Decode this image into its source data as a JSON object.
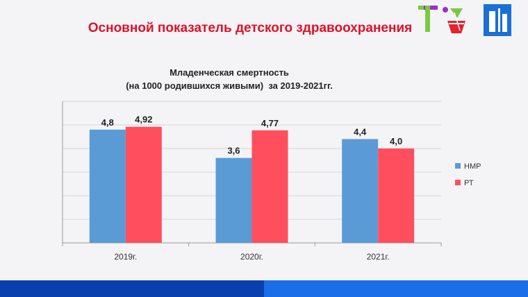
{
  "slide_title": "Основной показатель детского здравоохранения",
  "chart_data": {
    "type": "bar",
    "title_line1": "Младенческая смертность",
    "title_line2": "(на 1000 родившихся живыми)  за 2019-2021гг.",
    "categories": [
      "2019г.",
      "2020г.",
      "2021г."
    ],
    "series": [
      {
        "name": "НМР",
        "values": [
          4.8,
          3.6,
          4.4
        ],
        "labels": [
          "4,8",
          "3,6",
          "4,4"
        ],
        "color": "#5b9bd5"
      },
      {
        "name": "РТ",
        "values": [
          4.92,
          4.77,
          4.0
        ],
        "labels": [
          "4,92",
          "4,77",
          "4,0"
        ],
        "color": "#ff4f5e"
      }
    ],
    "ylim": [
      0,
      6
    ],
    "y_step": 1,
    "grid": true,
    "legend_position": "right"
  },
  "logos": {
    "left_logo_icon": "t-emblem-logo-icon",
    "right_logo_icon": "tower-emblem-logo-icon",
    "colors": {
      "purple": "#9b2fc7",
      "green": "#7ac943",
      "red": "#e4232a",
      "blue": "#1c6fd6"
    }
  },
  "footer": {
    "left_color": "#0a3fae",
    "right_color": "#1b6de8"
  }
}
